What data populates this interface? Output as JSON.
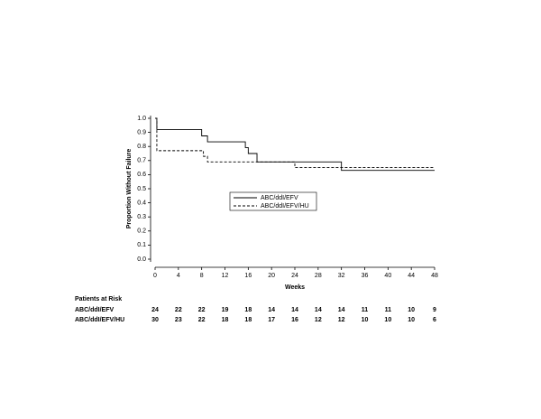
{
  "chart_data": {
    "type": "step",
    "xlabel": "Weeks",
    "ylabel": "Proportion Without Failure",
    "xlim": [
      0,
      48
    ],
    "ylim": [
      0,
      1
    ],
    "xticks": [
      0,
      4,
      8,
      12,
      16,
      20,
      24,
      28,
      32,
      36,
      40,
      44,
      48
    ],
    "yticks": [
      {
        "value": 0,
        "label": "0.0"
      },
      0.1,
      0.2,
      0.3,
      0.4,
      0.5,
      0.6,
      0.7,
      0.8,
      0.9,
      {
        "value": 1,
        "label": "1.0"
      }
    ],
    "series": [
      {
        "name": "ABC/ddI/EFV",
        "color": "#000000",
        "dash": false,
        "x": [
          0,
          0.3,
          8,
          9,
          15.5,
          16,
          17.5,
          32,
          48
        ],
        "values": [
          1.0,
          0.92,
          0.875,
          0.833,
          0.792,
          0.75,
          0.69,
          0.63,
          0.63
        ]
      },
      {
        "name": "ABC/ddI/EFV/HU",
        "color": "#000000",
        "dash": true,
        "x": [
          0,
          0.3,
          8.3,
          9,
          24,
          48
        ],
        "values": [
          1.0,
          0.77,
          0.73,
          0.69,
          0.65,
          0.65
        ]
      }
    ],
    "risk_table": {
      "title": "Patients at Risk",
      "rows": [
        {
          "label": "ABC/ddI/EFV",
          "values": [
            24,
            22,
            22,
            19,
            18,
            14,
            14,
            14,
            14,
            11,
            11,
            10,
            9
          ]
        },
        {
          "label": "ABC/ddI/EFV/HU",
          "values": [
            30,
            23,
            22,
            18,
            18,
            17,
            16,
            12,
            12,
            10,
            10,
            10,
            6
          ]
        }
      ]
    }
  }
}
